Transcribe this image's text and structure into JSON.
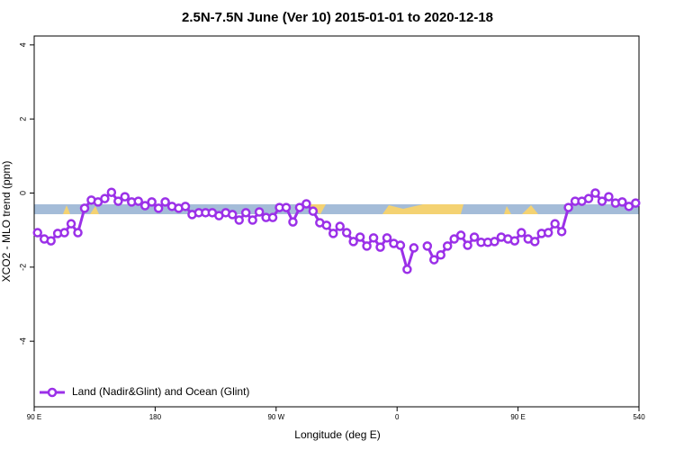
{
  "chart_data": {
    "type": "line",
    "title": "2.5N-7.5N June (Ver 10)   2015-01-01 to 2020-12-18",
    "x_label": "Longitude (deg E)",
    "y_label": "XCO2 - MLO trend (ppm)",
    "x": [
      92.5,
      97.5,
      102.5,
      107.5,
      112.5,
      117.5,
      122.5,
      127.5,
      132.5,
      137.5,
      142.5,
      147.5,
      152.5,
      157.5,
      162.5,
      167.5,
      172.5,
      177.5,
      182.5,
      187.5,
      192.5,
      197.5,
      202.5,
      207.5,
      212.5,
      217.5,
      222.5,
      227.5,
      232.5,
      237.5,
      242.5,
      247.5,
      252.5,
      257.5,
      262.5,
      267.5,
      272.5,
      277.5,
      282.5,
      287.5,
      292.5,
      297.5,
      302.5,
      307.5,
      312.5,
      317.5,
      322.5,
      327.5,
      332.5,
      337.5,
      342.5,
      347.5,
      352.5,
      357.5,
      362.5,
      367.5,
      372.5,
      377.5,
      382.5,
      387.5,
      392.5,
      397.5,
      402.5,
      407.5,
      412.5,
      417.5,
      422.5,
      427.5,
      432.5,
      437.5,
      442.5,
      447.5,
      452.5,
      457.5,
      462.5,
      467.5,
      472.5,
      477.5,
      482.5,
      487.5,
      492.5,
      497.5,
      502.5,
      507.5,
      512.5,
      517.5,
      522.5,
      527.5,
      532.5,
      537.5
    ],
    "series": [
      {
        "name": "Land (Nadir&Glint) and Ocean (Glint)",
        "color": "#9b30e8",
        "values": [
          -1.07,
          -1.24,
          -1.29,
          -1.09,
          -1.07,
          -0.83,
          -1.07,
          -0.41,
          -0.19,
          -0.24,
          -0.15,
          0.02,
          -0.22,
          -0.1,
          -0.24,
          -0.22,
          -0.34,
          -0.24,
          -0.41,
          -0.24,
          -0.36,
          -0.41,
          -0.36,
          -0.58,
          -0.53,
          -0.53,
          -0.53,
          -0.61,
          -0.53,
          -0.58,
          -0.73,
          -0.53,
          -0.73,
          -0.51,
          -0.66,
          -0.66,
          -0.39,
          -0.39,
          -0.78,
          -0.39,
          -0.29,
          -0.49,
          -0.8,
          -0.87,
          -1.09,
          -0.9,
          -1.07,
          -1.31,
          -1.19,
          -1.43,
          -1.21,
          -1.46,
          -1.21,
          -1.36,
          -1.41,
          -2.06,
          -1.48,
          null,
          -1.43,
          -1.8,
          -1.67,
          -1.43,
          -1.24,
          -1.14,
          -1.41,
          -1.19,
          -1.33,
          -1.33,
          -1.31,
          -1.19,
          -1.24,
          -1.29,
          -1.07,
          -1.24,
          -1.31,
          -1.09,
          -1.07,
          -0.83,
          -1.04,
          -0.39,
          -0.22,
          -0.22,
          -0.15,
          0.0,
          -0.22,
          -0.1,
          -0.27,
          -0.24,
          -0.36,
          -0.27
        ]
      }
    ],
    "xlim": [
      90,
      540
    ],
    "xticks": [
      {
        "value": 90,
        "label": "90 E"
      },
      180,
      {
        "value": 270,
        "label": "90 W"
      },
      {
        "value": 360,
        "label": "0"
      },
      {
        "value": 450,
        "label": "90 E"
      },
      540
    ],
    "ylim": [
      -5.77,
      4.24
    ],
    "yticks": [
      -4,
      -2,
      0,
      2,
      4
    ],
    "legend": "bottom-left"
  }
}
